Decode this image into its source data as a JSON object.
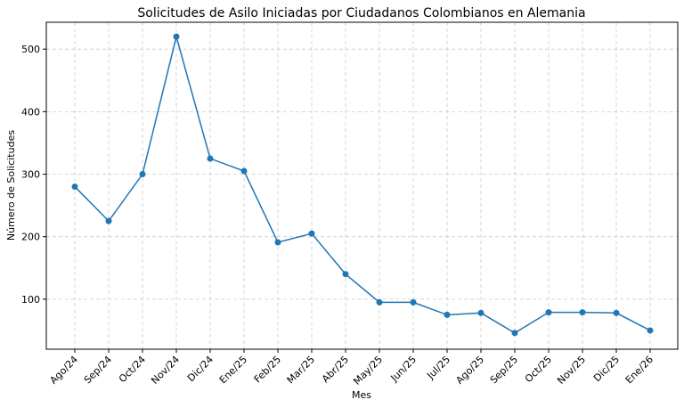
{
  "chart_data": {
    "type": "line",
    "title": "Solicitudes de Asilo Iniciadas por Ciudadanos Colombianos en Alemania",
    "xlabel": "Mes",
    "ylabel": "Número de Solicitudes",
    "categories": [
      "Ago/24",
      "Sep/24",
      "Oct/24",
      "Nov/24",
      "Dic/24",
      "Ene/25",
      "Feb/25",
      "Mar/25",
      "Abr/25",
      "May/25",
      "Jun/25",
      "Jul/25",
      "Ago/25",
      "Sep/25",
      "Oct/25",
      "Nov/25",
      "Dic/25",
      "Ene/26"
    ],
    "series": [
      {
        "values": [
          280,
          225,
          300,
          520,
          325,
          305,
          191,
          205,
          140,
          95,
          95,
          75,
          78,
          46,
          79,
          79,
          78,
          50
        ]
      }
    ],
    "ylim": [
      20,
      543
    ],
    "yticks": [
      100,
      200,
      300,
      400,
      500
    ],
    "grid": true,
    "line_color": "#1f77b4"
  }
}
